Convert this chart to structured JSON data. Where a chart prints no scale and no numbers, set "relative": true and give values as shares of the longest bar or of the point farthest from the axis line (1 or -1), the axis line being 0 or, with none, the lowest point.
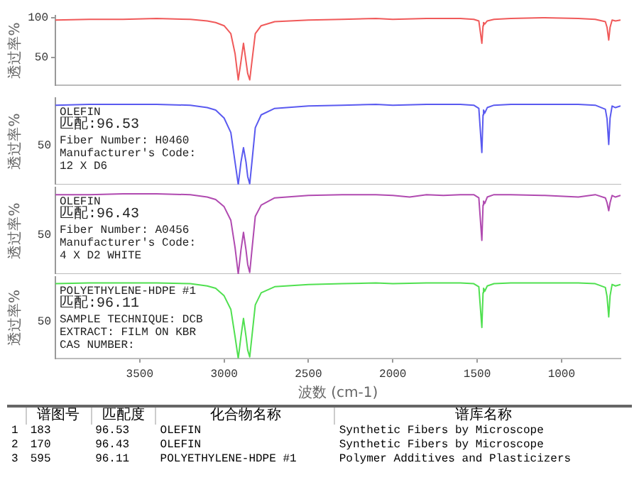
{
  "chart_data": [
    {
      "type": "line",
      "ylabel": "透过率%",
      "xlim": [
        4000,
        650
      ],
      "ylim": [
        15,
        103
      ],
      "yticks": [
        50,
        100
      ],
      "tick_labels": "y",
      "series": [
        {
          "color": "#f05a5a",
          "x": [
            4000,
            3800,
            3600,
            3400,
            3200,
            3100,
            3050,
            3000,
            2960,
            2935,
            2916,
            2900,
            2885,
            2870,
            2860,
            2848,
            2835,
            2815,
            2780,
            2700,
            2500,
            2300,
            2100,
            2000,
            1800,
            1600,
            1520,
            1490,
            1472,
            1465,
            1462,
            1455,
            1440,
            1400,
            1300,
            1100,
            900,
            800,
            740,
            730,
            720,
            712,
            700,
            680,
            650
          ],
          "values": [
            97,
            98,
            98,
            99,
            98,
            96,
            94,
            90,
            80,
            55,
            22,
            45,
            68,
            45,
            30,
            22,
            45,
            80,
            90,
            95,
            97,
            98,
            99,
            98,
            99,
            99,
            98,
            96,
            68,
            90,
            94,
            92,
            96,
            98,
            99,
            100,
            99,
            98,
            95,
            88,
            72,
            88,
            97,
            96,
            97
          ]
        }
      ]
    },
    {
      "type": "line",
      "relative": true,
      "ylabel": "透过率%",
      "xlim": [
        4000,
        650
      ],
      "tick_labels": "y",
      "annotations": [
        "50",
        "OLEFIN",
        "匹配:96.53",
        "Fiber Number: H0460",
        "Manufacturer's Code: 12 X D6"
      ],
      "series": [
        {
          "color": "#5a5af0",
          "x": [
            4000,
            3800,
            3600,
            3400,
            3200,
            3100,
            3050,
            3000,
            2960,
            2935,
            2916,
            2900,
            2885,
            2870,
            2860,
            2848,
            2835,
            2815,
            2780,
            2700,
            2500,
            2300,
            2100,
            2000,
            1800,
            1600,
            1520,
            1490,
            1472,
            1465,
            1462,
            1455,
            1440,
            1400,
            1300,
            1100,
            900,
            800,
            740,
            730,
            720,
            712,
            700,
            680,
            650
          ],
          "values": [
            0.99,
            1,
            1,
            1,
            0.99,
            0.96,
            0.93,
            0.83,
            0.65,
            0.28,
            0,
            0.28,
            0.46,
            0.28,
            0.1,
            0.01,
            0.28,
            0.71,
            0.87,
            0.95,
            0.98,
            0.99,
            1,
            0.99,
            1,
            1,
            0.99,
            0.95,
            0.4,
            0.87,
            0.93,
            0.89,
            0.96,
            0.99,
            1,
            1,
            1,
            0.99,
            0.94,
            0.82,
            0.5,
            0.83,
            0.98,
            0.96,
            0.98
          ]
        }
      ]
    },
    {
      "type": "line",
      "relative": true,
      "ylabel": "透过率%",
      "xlim": [
        4000,
        650
      ],
      "tick_labels": "y",
      "annotations": [
        "50",
        "OLEFIN",
        "匹配:96.43",
        "Fiber Number: A0456",
        "Manufacturer's Code: 4 X D2 WHITE"
      ],
      "series": [
        {
          "color": "#b04ab0",
          "x": [
            4000,
            3800,
            3600,
            3400,
            3200,
            3100,
            3050,
            3000,
            2960,
            2935,
            2916,
            2900,
            2885,
            2870,
            2860,
            2848,
            2835,
            2815,
            2780,
            2700,
            2500,
            2300,
            2100,
            2000,
            1900,
            1800,
            1700,
            1600,
            1520,
            1490,
            1472,
            1465,
            1462,
            1455,
            1440,
            1400,
            1300,
            1100,
            900,
            800,
            740,
            730,
            720,
            712,
            700,
            680,
            650
          ],
          "values": [
            0.99,
            0.99,
            1,
            1,
            0.99,
            0.96,
            0.93,
            0.84,
            0.67,
            0.33,
            0,
            0.3,
            0.52,
            0.3,
            0.12,
            0.02,
            0.3,
            0.72,
            0.86,
            0.95,
            0.98,
            0.99,
            0.99,
            0.98,
            0.96,
            0.99,
            0.98,
            0.99,
            0.99,
            0.95,
            0.42,
            0.86,
            0.91,
            0.88,
            0.96,
            0.99,
            0.99,
            0.98,
            0.96,
            0.99,
            0.95,
            0.89,
            0.79,
            0.89,
            0.98,
            0.96,
            0.98
          ]
        }
      ]
    },
    {
      "type": "line",
      "relative": true,
      "ylabel": "透过率%",
      "xlabel": "波数 (cm-1)",
      "xlim": [
        4000,
        650
      ],
      "xticks": [
        3500,
        3000,
        2500,
        2000,
        1500,
        1000
      ],
      "annotations": [
        "50",
        "POLYETHYLENE-HDPE #1",
        "匹配:96.11",
        "SAMPLE TECHNIQUE: DCB EXTRACT: FILM ON KBR",
        "CAS NUMBER:"
      ],
      "series": [
        {
          "color": "#50e050",
          "x": [
            4000,
            3800,
            3600,
            3400,
            3200,
            3100,
            3050,
            3000,
            2960,
            2935,
            2916,
            2900,
            2885,
            2870,
            2860,
            2848,
            2835,
            2815,
            2780,
            2700,
            2500,
            2300,
            2100,
            2000,
            1800,
            1600,
            1520,
            1490,
            1472,
            1465,
            1462,
            1455,
            1440,
            1400,
            1300,
            1100,
            900,
            800,
            740,
            730,
            720,
            712,
            700,
            680,
            650
          ],
          "values": [
            0.99,
            1,
            1,
            1,
            0.99,
            0.96,
            0.93,
            0.83,
            0.65,
            0.29,
            0,
            0.29,
            0.53,
            0.29,
            0.11,
            0.02,
            0.29,
            0.71,
            0.87,
            0.95,
            0.98,
            0.99,
            1,
            0.99,
            1,
            1,
            0.99,
            0.95,
            0.41,
            0.87,
            0.93,
            0.89,
            0.96,
            0.99,
            1,
            1,
            1,
            0.99,
            0.94,
            0.82,
            0.55,
            0.83,
            0.98,
            0.96,
            0.98
          ]
        }
      ]
    },
    {
      "type": "other",
      "annotations": [
        "谱图号",
        "匹配度",
        "化合物名称",
        "谱库名称",
        "1",
        "183",
        "96.53",
        "OLEFIN",
        "Synthetic Fibers by Microscope",
        "2",
        "170",
        "96.43",
        "OLEFIN",
        "Synthetic Fibers by Microscope",
        "3",
        "595",
        "96.11",
        "POLYETHYLENE-HDPE #1",
        "Polymer Additives and Plasticizers"
      ]
    }
  ]
}
